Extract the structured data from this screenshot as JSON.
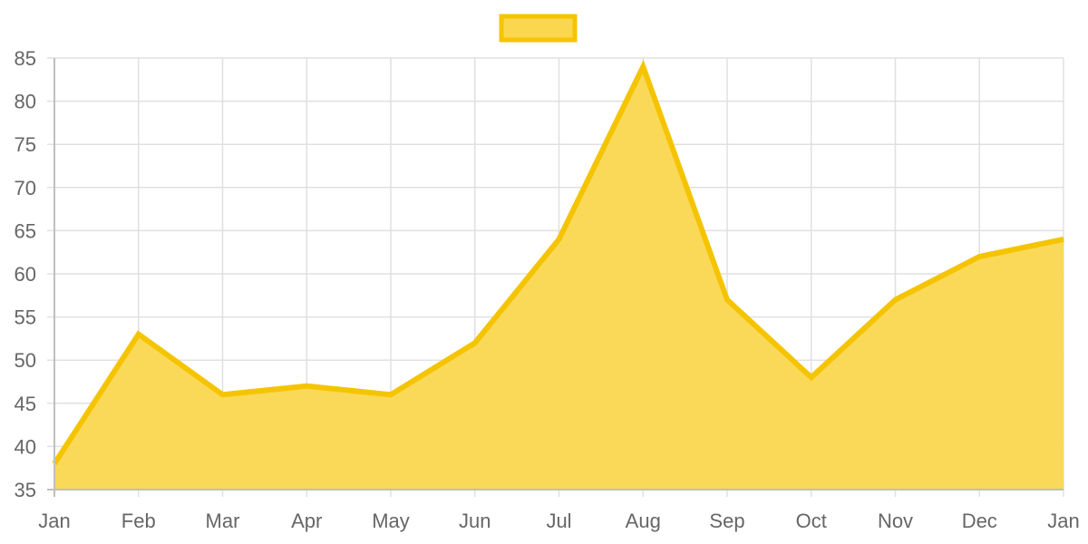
{
  "chart_data": {
    "type": "area",
    "categories": [
      "Jan",
      "Feb",
      "Mar",
      "Apr",
      "May",
      "Jun",
      "Jul",
      "Aug",
      "Sep",
      "Oct",
      "Nov",
      "Dec",
      "Jan"
    ],
    "series": [
      {
        "values": [
          38,
          53,
          46,
          47,
          46,
          52,
          64,
          84,
          57,
          48,
          57,
          62,
          64
        ]
      }
    ],
    "ylim": [
      35,
      85
    ],
    "yticks": [
      35,
      40,
      45,
      50,
      55,
      60,
      65,
      70,
      75,
      80,
      85
    ],
    "grid": true,
    "legend_position": "top-center",
    "colors": {
      "line": "#f5c400",
      "fill": "#fbd74f",
      "grid": "#e0e0e0",
      "axis": "#bfbfbf",
      "text": "#666666"
    }
  }
}
